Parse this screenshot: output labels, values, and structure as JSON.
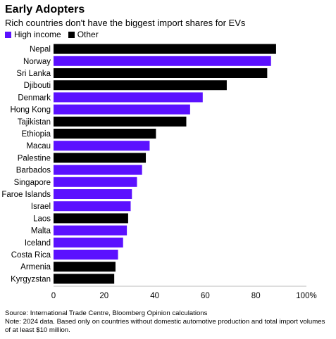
{
  "chart_data": {
    "type": "bar",
    "orientation": "horizontal",
    "title": "Early Adopters",
    "subtitle": "Rich countries don't have the biggest import shares for EVs",
    "legend": [
      {
        "name": "High income",
        "color": "#5b11ff"
      },
      {
        "name": "Other",
        "color": "#000000"
      }
    ],
    "categories": [
      "Nepal",
      "Norway",
      "Sri Lanka",
      "Djibouti",
      "Denmark",
      "Hong Kong",
      "Tajikistan",
      "Ethiopia",
      "Macau",
      "Palestine",
      "Barbados",
      "Singapore",
      "Faroe Islands",
      "Israel",
      "Laos",
      "Malta",
      "Iceland",
      "Costa Rica",
      "Armenia",
      "Kyrgyzstan"
    ],
    "values": [
      88,
      86,
      84.5,
      68.5,
      59,
      54,
      52.5,
      40.5,
      38,
      36.5,
      35,
      33,
      31,
      30.5,
      29.5,
      29,
      27.5,
      25.5,
      24.5,
      24
    ],
    "groups": [
      "Other",
      "High income",
      "Other",
      "Other",
      "High income",
      "High income",
      "Other",
      "Other",
      "High income",
      "Other",
      "High income",
      "High income",
      "High income",
      "High income",
      "Other",
      "High income",
      "High income",
      "High income",
      "Other",
      "Other"
    ],
    "xlim": [
      0,
      100
    ],
    "xticks": [
      "0",
      "20",
      "40",
      "60",
      "80",
      "100%"
    ],
    "grid": false,
    "legend_placement": "top-left"
  },
  "source": "Source: International Trade Centre, Bloomberg Opinion calculations",
  "note": "Note: 2024 data. Based only on countries without domestic automotive production and total import volumes of at least $10 million."
}
